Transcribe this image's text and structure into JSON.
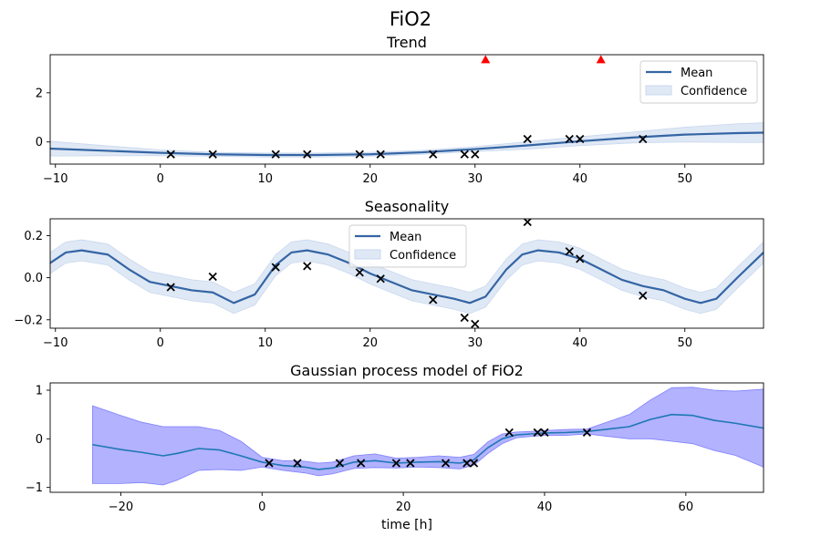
{
  "figure": {
    "suptitle": "FiO2"
  },
  "colors": {
    "trend_mean": "#3465a4",
    "trend_band": "#c9d8ee",
    "gp_mean": "#1f77b4",
    "gp_band": "#7f7fff",
    "obs_marker": "#000000",
    "outlier_marker": "#ff0000"
  },
  "chart_data": [
    {
      "type": "line",
      "title": "Trend",
      "xlabel": "",
      "ylabel": "",
      "xlim": [
        -10.5,
        57.5
      ],
      "ylim": [
        -0.9,
        3.55
      ],
      "xticks": [
        -10,
        0,
        10,
        20,
        30,
        40,
        50
      ],
      "yticks": [
        0,
        2
      ],
      "grid": false,
      "legend": {
        "position": "top-right",
        "entries": [
          "Mean",
          "Confidence"
        ]
      },
      "mean": {
        "x": [
          -10.5,
          -5,
          0,
          5,
          10,
          15,
          20,
          25,
          30,
          35,
          40,
          45,
          50,
          55,
          57.5
        ],
        "y": [
          -0.27,
          -0.36,
          -0.44,
          -0.5,
          -0.53,
          -0.53,
          -0.5,
          -0.42,
          -0.29,
          -0.14,
          0.03,
          0.18,
          0.3,
          0.36,
          0.38
        ]
      },
      "band_halfwidth": [
        0.3,
        0.2,
        0.12,
        0.08,
        0.08,
        0.08,
        0.08,
        0.08,
        0.1,
        0.15,
        0.18,
        0.22,
        0.3,
        0.38,
        0.4
      ],
      "observations": {
        "x": [
          1,
          5,
          11,
          14,
          19,
          21,
          26,
          29,
          30,
          35,
          39,
          40,
          46
        ],
        "y": [
          -0.5,
          -0.5,
          -0.5,
          -0.5,
          -0.5,
          -0.5,
          -0.5,
          -0.5,
          -0.5,
          0.12,
          0.12,
          0.12,
          0.12
        ]
      },
      "outliers": {
        "x": [
          31,
          42
        ],
        "y": [
          3.35,
          3.35
        ]
      }
    },
    {
      "type": "line",
      "title": "Seasonality",
      "xlabel": "",
      "ylabel": "",
      "xlim": [
        -10.5,
        57.5
      ],
      "ylim": [
        -0.24,
        0.28
      ],
      "xticks": [
        -10,
        0,
        10,
        20,
        30,
        40,
        50
      ],
      "yticks": [
        -0.2,
        0.0,
        0.2
      ],
      "grid": false,
      "legend": {
        "position": "top-center",
        "entries": [
          "Mean",
          "Confidence"
        ]
      },
      "mean": {
        "x": [
          -10.5,
          -9,
          -7.5,
          -5,
          -3,
          -1,
          1,
          3,
          5,
          7,
          9,
          11,
          12.5,
          14,
          16,
          18,
          20,
          22,
          24,
          26,
          28,
          29.5,
          31,
          33,
          34.5,
          36,
          38,
          40,
          42,
          44,
          46,
          48,
          50,
          51.5,
          53,
          55,
          57.5
        ],
        "y": [
          0.07,
          0.12,
          0.13,
          0.11,
          0.04,
          -0.02,
          -0.04,
          -0.06,
          -0.07,
          -0.12,
          -0.08,
          0.06,
          0.12,
          0.13,
          0.11,
          0.07,
          0.02,
          -0.02,
          -0.06,
          -0.08,
          -0.1,
          -0.12,
          -0.09,
          0.04,
          0.11,
          0.13,
          0.12,
          0.09,
          0.04,
          -0.01,
          -0.04,
          -0.06,
          -0.1,
          -0.12,
          -0.1,
          0.0,
          0.12
        ]
      },
      "band_halfwidth": 0.05,
      "observations": {
        "x": [
          1,
          5,
          11,
          14,
          19,
          21,
          26,
          29,
          30,
          35,
          39,
          40,
          46
        ],
        "y": [
          -0.045,
          0.005,
          0.05,
          0.055,
          0.025,
          -0.005,
          -0.105,
          -0.19,
          -0.22,
          0.265,
          0.125,
          0.09,
          -0.085
        ]
      }
    },
    {
      "type": "line",
      "title": "Gaussian process model of FiO2",
      "xlabel": "time [h]",
      "ylabel": "",
      "xlim": [
        -30,
        71
      ],
      "ylim": [
        -1.1,
        1.15
      ],
      "xticks": [
        -20,
        0,
        20,
        40,
        60
      ],
      "yticks": [
        -1,
        0,
        1
      ],
      "grid": false,
      "legend": null,
      "mean": {
        "x": [
          -24,
          -20,
          -17,
          -14,
          -12,
          -9,
          -6,
          -3,
          0,
          3,
          6,
          8,
          10,
          13,
          16,
          19,
          22,
          25,
          28,
          30,
          32,
          34,
          36,
          38,
          40,
          43,
          46,
          49,
          52,
          55,
          58,
          61,
          64,
          67,
          71
        ],
        "y": [
          -0.12,
          -0.22,
          -0.28,
          -0.35,
          -0.3,
          -0.2,
          -0.23,
          -0.35,
          -0.48,
          -0.55,
          -0.58,
          -0.63,
          -0.6,
          -0.48,
          -0.45,
          -0.5,
          -0.48,
          -0.47,
          -0.5,
          -0.43,
          -0.18,
          0.0,
          0.08,
          0.1,
          0.12,
          0.13,
          0.15,
          0.2,
          0.25,
          0.4,
          0.5,
          0.48,
          0.38,
          0.32,
          0.22
        ]
      },
      "band_halfwidth": [
        0.8,
        0.7,
        0.62,
        0.6,
        0.55,
        0.45,
        0.4,
        0.3,
        0.1,
        0.1,
        0.12,
        0.13,
        0.12,
        0.13,
        0.14,
        0.1,
        0.1,
        0.12,
        0.12,
        0.11,
        0.12,
        0.1,
        0.06,
        0.05,
        0.05,
        0.06,
        0.05,
        0.15,
        0.25,
        0.4,
        0.55,
        0.58,
        0.62,
        0.66,
        0.8
      ],
      "observations": {
        "x": [
          1,
          5,
          11,
          14,
          19,
          21,
          26,
          29,
          30,
          35,
          39,
          40,
          46
        ],
        "y": [
          -0.5,
          -0.5,
          -0.5,
          -0.5,
          -0.5,
          -0.5,
          -0.5,
          -0.5,
          -0.5,
          0.13,
          0.13,
          0.13,
          0.13
        ]
      }
    }
  ]
}
